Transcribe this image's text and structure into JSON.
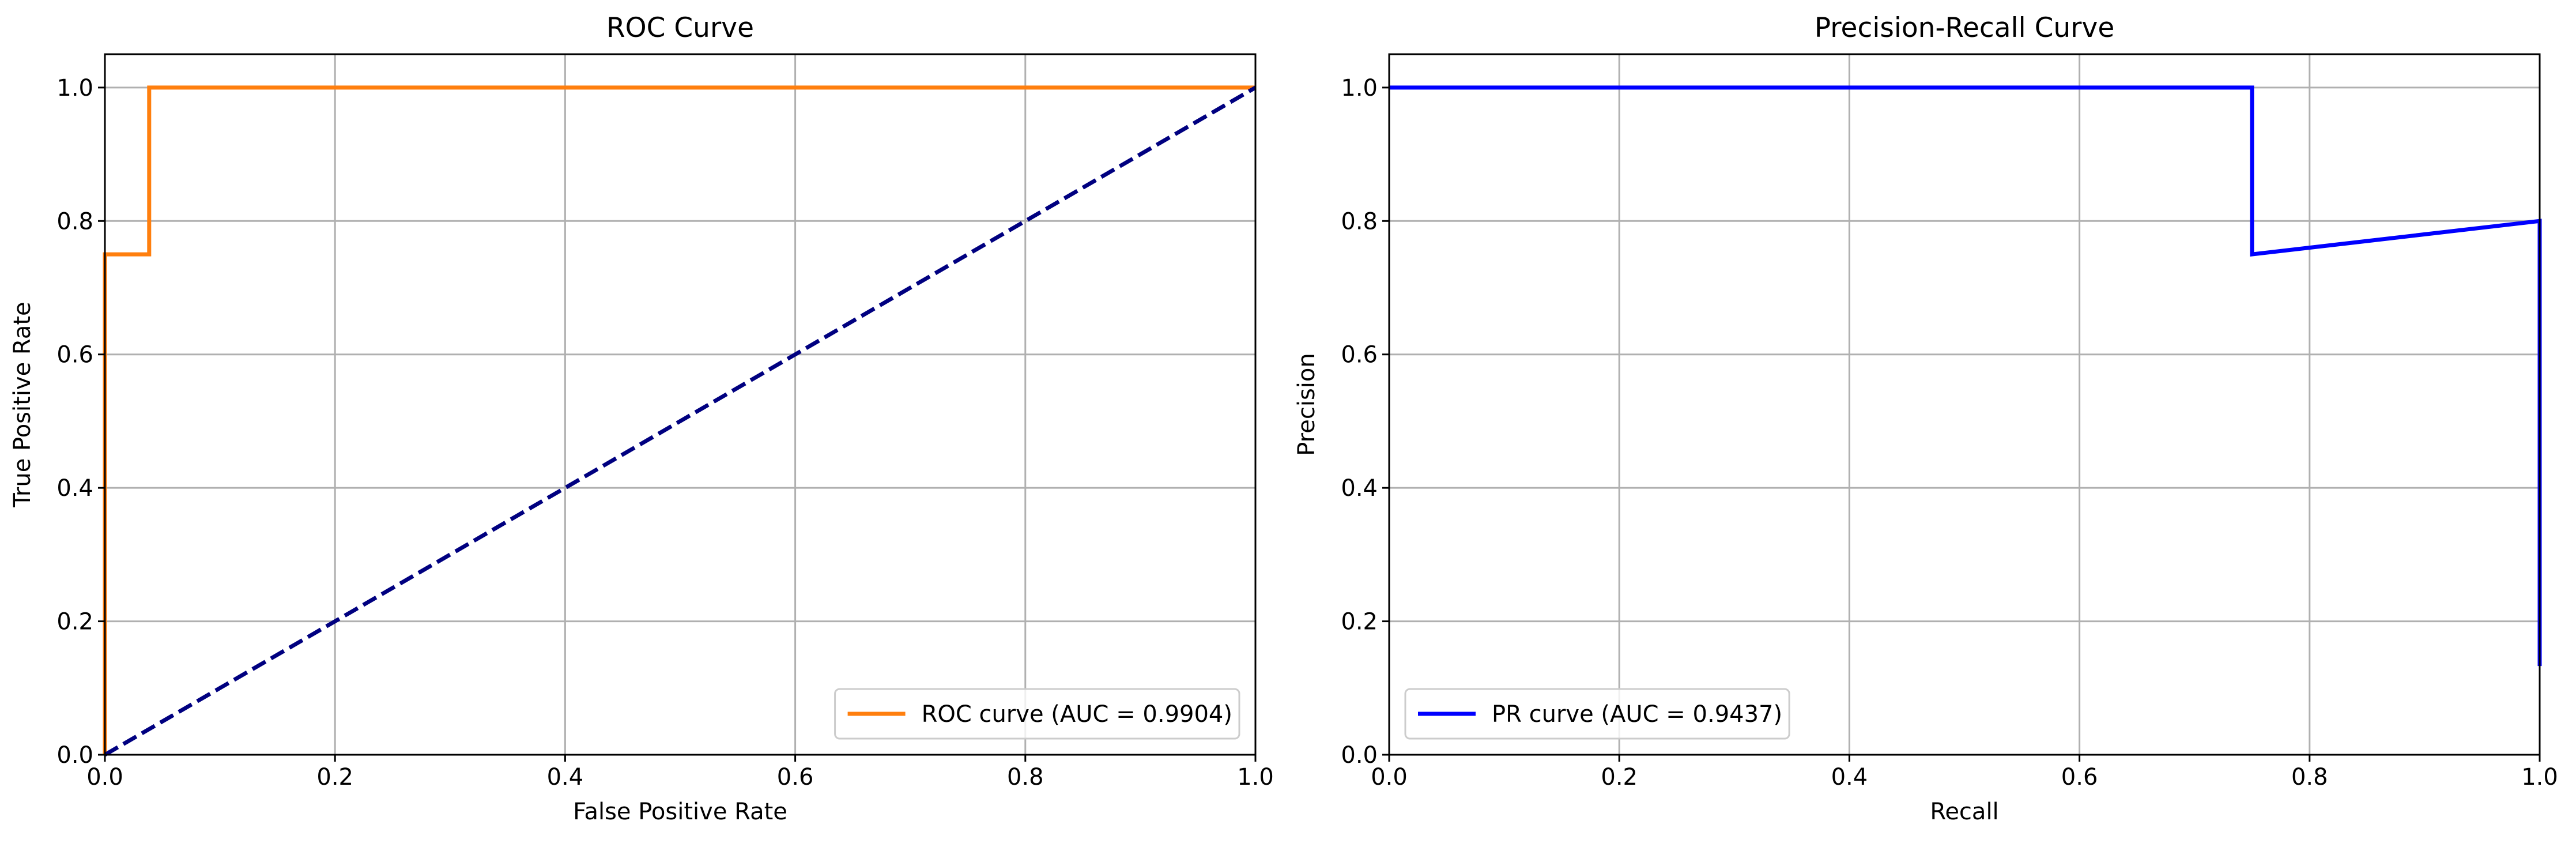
{
  "chart_data": [
    {
      "type": "line",
      "title": "ROC Curve",
      "xlabel": "False Positive Rate",
      "ylabel": "True Positive Rate",
      "xlim": [
        0.0,
        1.0
      ],
      "ylim": [
        0.0,
        1.05
      ],
      "xticks": [
        "0.0",
        "0.2",
        "0.4",
        "0.6",
        "0.8",
        "1.0"
      ],
      "yticks": [
        "0.0",
        "0.2",
        "0.4",
        "0.6",
        "0.8",
        "1.0"
      ],
      "grid": true,
      "legend_position": "lower right",
      "series": [
        {
          "name": "ROC curve (AUC = 0.9904)",
          "color": "#ff7f0e",
          "style": "solid",
          "x": [
            0.0,
            0.0,
            0.0,
            0.0385,
            0.0385,
            1.0
          ],
          "y": [
            0.0,
            0.25,
            0.75,
            0.75,
            1.0,
            1.0
          ]
        },
        {
          "color": "#000080",
          "style": "dashed",
          "x": [
            0.0,
            1.0
          ],
          "y": [
            0.0,
            1.0
          ]
        }
      ]
    },
    {
      "type": "line",
      "title": "Precision-Recall Curve",
      "xlabel": "Recall",
      "ylabel": "Precision",
      "xlim": [
        0.0,
        1.0
      ],
      "ylim": [
        0.0,
        1.05
      ],
      "xticks": [
        "0.0",
        "0.2",
        "0.4",
        "0.6",
        "0.8",
        "1.0"
      ],
      "yticks": [
        "0.0",
        "0.2",
        "0.4",
        "0.6",
        "0.8",
        "1.0"
      ],
      "grid": true,
      "legend_position": "lower left",
      "series": [
        {
          "name": "PR curve (AUC = 0.9437)",
          "color": "#0000ff",
          "style": "solid",
          "x": [
            0.0,
            0.75,
            0.75,
            1.0,
            1.0
          ],
          "y": [
            1.0,
            1.0,
            0.75,
            0.8,
            0.133
          ]
        }
      ]
    }
  ]
}
